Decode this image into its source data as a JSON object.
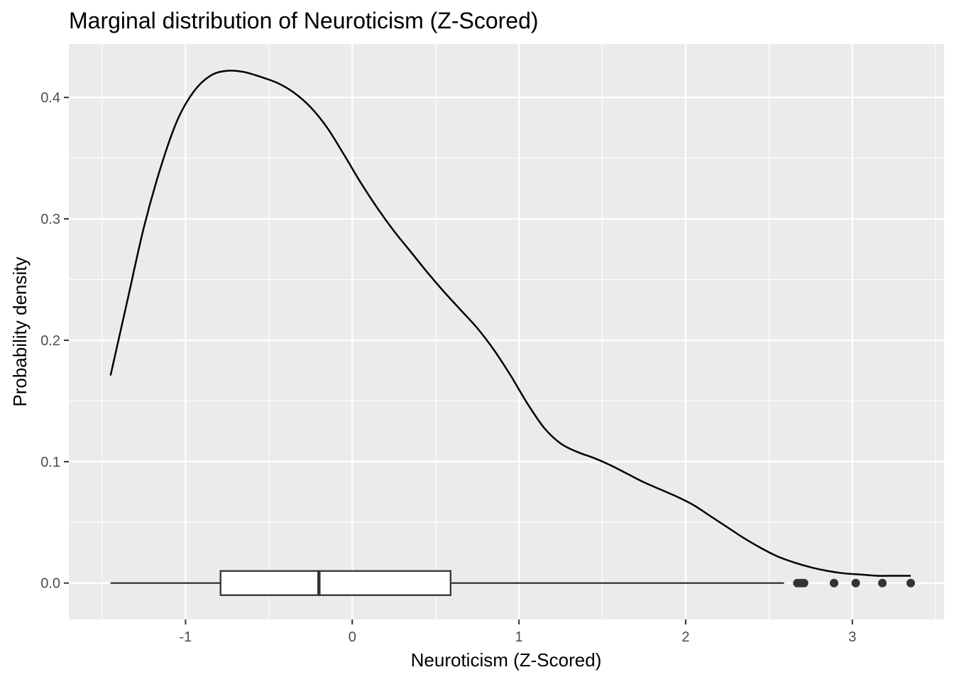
{
  "chart_data": {
    "type": "density",
    "title": "Marginal distribution of Neuroticism (Z-Scored)",
    "xlabel": "Neuroticism (Z-Scored)",
    "ylabel": "Probability density",
    "xlim": [
      -1.7,
      3.55
    ],
    "ylim": [
      -0.03,
      0.444
    ],
    "x_ticks": [
      -1,
      0,
      1,
      2,
      3
    ],
    "x_tick_labels": [
      "-1",
      "0",
      "1",
      "2",
      "3"
    ],
    "y_ticks": [
      0.0,
      0.1,
      0.2,
      0.3,
      0.4
    ],
    "y_tick_labels": [
      "0.0",
      "0.1",
      "0.2",
      "0.3",
      "0.4"
    ],
    "grid": true,
    "density": {
      "x": [
        -1.45,
        -1.35,
        -1.25,
        -1.15,
        -1.05,
        -0.95,
        -0.85,
        -0.75,
        -0.65,
        -0.55,
        -0.45,
        -0.35,
        -0.25,
        -0.15,
        -0.05,
        0.05,
        0.15,
        0.25,
        0.35,
        0.45,
        0.55,
        0.65,
        0.75,
        0.85,
        0.95,
        1.05,
        1.15,
        1.25,
        1.35,
        1.45,
        1.55,
        1.65,
        1.75,
        1.85,
        1.95,
        2.05,
        2.15,
        2.25,
        2.35,
        2.45,
        2.55,
        2.65,
        2.75,
        2.85,
        2.95,
        3.05,
        3.15,
        3.25,
        3.35
      ],
      "y": [
        0.171,
        0.232,
        0.293,
        0.342,
        0.381,
        0.405,
        0.418,
        0.422,
        0.421,
        0.417,
        0.412,
        0.404,
        0.392,
        0.375,
        0.353,
        0.33,
        0.309,
        0.29,
        0.273,
        0.256,
        0.24,
        0.225,
        0.21,
        0.192,
        0.171,
        0.148,
        0.128,
        0.115,
        0.108,
        0.103,
        0.097,
        0.09,
        0.083,
        0.077,
        0.071,
        0.064,
        0.055,
        0.046,
        0.037,
        0.029,
        0.022,
        0.017,
        0.013,
        0.01,
        0.008,
        0.007,
        0.006,
        0.006,
        0.006
      ]
    },
    "boxplot": {
      "whisker_low": -1.45,
      "q1": -0.79,
      "median": -0.2,
      "q3": 0.59,
      "whisker_high": 2.59,
      "outliers": [
        2.67,
        2.69,
        2.71,
        2.89,
        3.02,
        3.18,
        3.35
      ]
    }
  }
}
